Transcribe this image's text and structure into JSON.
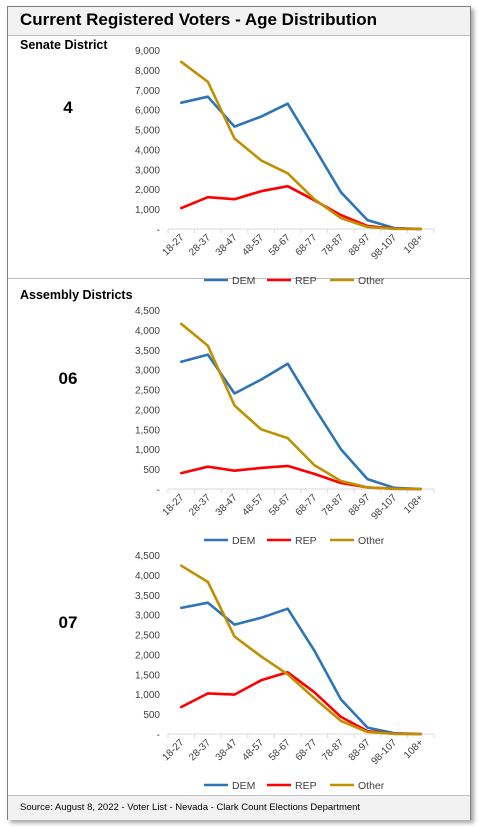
{
  "title": "Current Registered Voters - Age Distribution",
  "sections": {
    "senate_label": "Senate District",
    "assembly_label": "Assembly Districts"
  },
  "districts": [
    "4",
    "06",
    "07"
  ],
  "footer": "Source: August 8, 2022 - Voter List - Nevada - Clark Count Elections Department",
  "colors": {
    "DEM": "#2e75b6",
    "REP": "#ff0000",
    "Other": "#bf9000"
  },
  "chart_data": [
    {
      "type": "line",
      "district": "4",
      "categories": [
        "18-27",
        "28-37",
        "38-47",
        "48-57",
        "58-67",
        "68-77",
        "78-87",
        "88-97",
        "98-107",
        "108+"
      ],
      "yticks": [
        0,
        1000,
        2000,
        3000,
        4000,
        5000,
        6000,
        7000,
        8000,
        9000
      ],
      "ytick_labels": [
        "-",
        "1,000",
        "2,000",
        "3,000",
        "4,000",
        "5,000",
        "6,000",
        "7,000",
        "8,000",
        "9,000"
      ],
      "ylim": [
        0,
        9000
      ],
      "series": [
        {
          "name": "DEM",
          "values": [
            6350,
            6650,
            5150,
            5650,
            6300,
            4100,
            1850,
            450,
            50,
            0
          ]
        },
        {
          "name": "REP",
          "values": [
            1050,
            1600,
            1500,
            1900,
            2150,
            1450,
            700,
            150,
            20,
            0
          ]
        },
        {
          "name": "Other",
          "values": [
            8400,
            7400,
            4550,
            3450,
            2800,
            1500,
            550,
            100,
            10,
            0
          ]
        }
      ]
    },
    {
      "type": "line",
      "district": "06",
      "categories": [
        "18-27",
        "28-37",
        "38-47",
        "48-57",
        "58-67",
        "68-77",
        "78-87",
        "88-97",
        "98-107",
        "108+"
      ],
      "yticks": [
        0,
        500,
        1000,
        1500,
        2000,
        2500,
        3000,
        3500,
        4000,
        4500
      ],
      "ytick_labels": [
        "-",
        "500",
        "1,000",
        "1,500",
        "2,000",
        "2,500",
        "3,000",
        "3,500",
        "4,000",
        "4,500"
      ],
      "ylim": [
        0,
        4500
      ],
      "series": [
        {
          "name": "DEM",
          "values": [
            3200,
            3380,
            2400,
            2750,
            3150,
            2050,
            1000,
            250,
            30,
            0
          ]
        },
        {
          "name": "REP",
          "values": [
            400,
            560,
            460,
            530,
            580,
            380,
            150,
            40,
            5,
            0
          ]
        },
        {
          "name": "Other",
          "values": [
            4150,
            3600,
            2100,
            1500,
            1280,
            600,
            200,
            40,
            5,
            0
          ]
        }
      ]
    },
    {
      "type": "line",
      "district": "07",
      "categories": [
        "18-27",
        "28-37",
        "38-47",
        "48-57",
        "58-67",
        "68-77",
        "78-87",
        "88-97",
        "98-107",
        "108+"
      ],
      "yticks": [
        0,
        500,
        1000,
        1500,
        2000,
        2500,
        3000,
        3500,
        4000,
        4500
      ],
      "ytick_labels": [
        "-",
        "500",
        "1,000",
        "1,500",
        "2,000",
        "2,500",
        "3,000",
        "3,500",
        "4,000",
        "4,500"
      ],
      "ylim": [
        0,
        4500
      ],
      "series": [
        {
          "name": "DEM",
          "values": [
            3170,
            3300,
            2750,
            2920,
            3150,
            2100,
            870,
            160,
            20,
            0
          ]
        },
        {
          "name": "REP",
          "values": [
            680,
            1020,
            990,
            1350,
            1550,
            1050,
            430,
            70,
            5,
            0
          ]
        },
        {
          "name": "Other",
          "values": [
            4230,
            3820,
            2450,
            1950,
            1500,
            900,
            330,
            50,
            5,
            0
          ]
        }
      ]
    }
  ]
}
